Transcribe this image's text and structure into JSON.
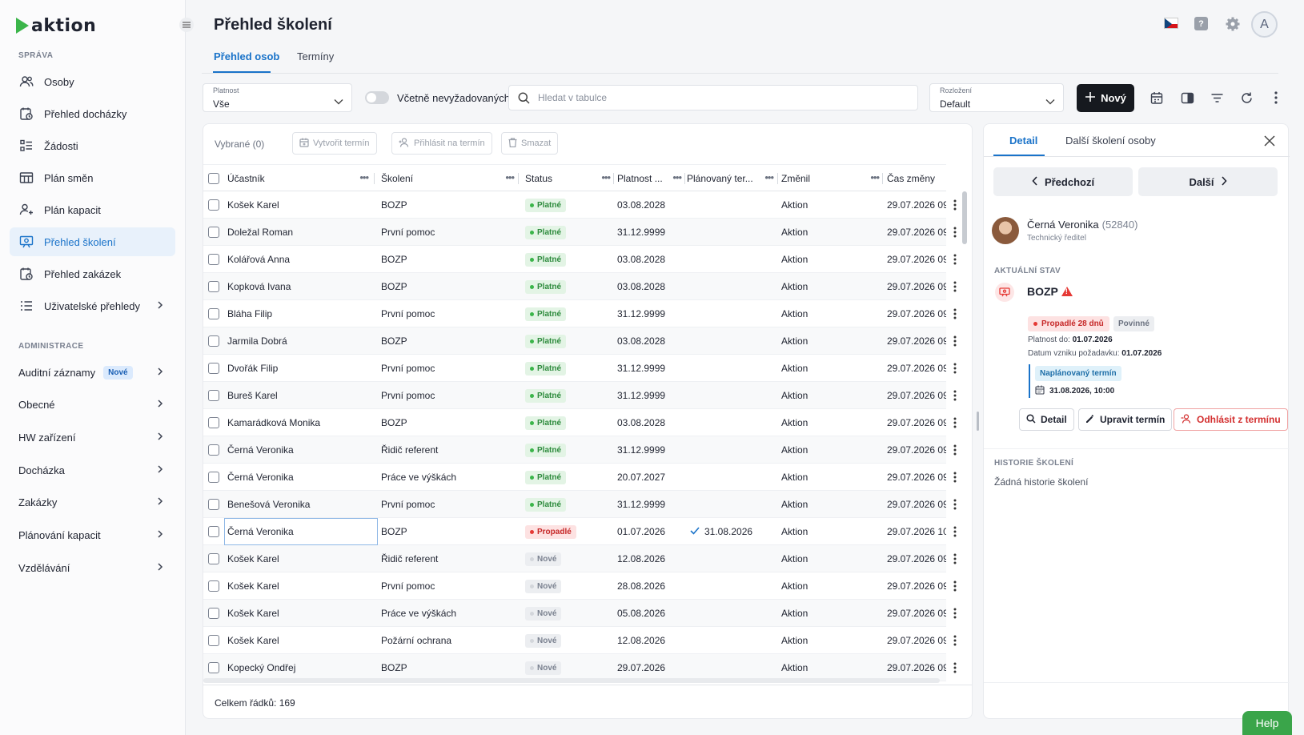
{
  "app": {
    "logo_text": "aktion"
  },
  "sidebar": {
    "section_sprava": "SPRÁVA",
    "items": [
      {
        "label": "Osoby",
        "icon": "people-icon"
      },
      {
        "label": "Přehled docházky",
        "icon": "attendance-icon"
      },
      {
        "label": "Žádosti",
        "icon": "requests-icon"
      },
      {
        "label": "Plán směn",
        "icon": "shift-plan-icon"
      },
      {
        "label": "Plán kapacit",
        "icon": "capacity-icon"
      },
      {
        "label": "Přehled školení",
        "icon": "training-icon",
        "active": true
      },
      {
        "label": "Přehled zakázek",
        "icon": "orders-icon"
      },
      {
        "label": "Uživatelské přehledy",
        "icon": "list-icon"
      }
    ],
    "section_admin": "ADMINISTRACE",
    "admin_items": [
      {
        "label": "Auditní záznamy",
        "badge": "Nové"
      },
      {
        "label": "Obecné"
      },
      {
        "label": "HW zařízení"
      },
      {
        "label": "Docházka"
      },
      {
        "label": "Zakázky"
      },
      {
        "label": "Plánování kapacit"
      },
      {
        "label": "Vzdělávání"
      }
    ]
  },
  "header": {
    "title": "Přehled školení",
    "tabs": [
      {
        "label": "Přehled osob"
      },
      {
        "label": "Termíny"
      }
    ],
    "avatar_letter": "A",
    "help_glyph": "?"
  },
  "toolbar": {
    "validity_label": "Platnost",
    "validity_value": "Vše",
    "toggle_label": "Včetně nevyžadovaných",
    "search_placeholder": "Hledat v tabulce",
    "layout_label": "Rozložení",
    "layout_value": "Default",
    "new_button": "Nový"
  },
  "grid": {
    "selected_label": "Vybrané (0)",
    "buttons": {
      "create": "Vytvořit termín",
      "signup": "Přihlásit na termín",
      "delete": "Smazat"
    },
    "columns": [
      "Účastník",
      "Školení",
      "Status",
      "Platnost ...",
      "Plánovaný ter...",
      "Změnil",
      "Čas změny"
    ],
    "rows": [
      {
        "participant": "Košek Karel",
        "course": "BOZP",
        "status": "Platné",
        "status_type": "ok",
        "validity": "03.08.2028",
        "planned": "",
        "changed_by": "Aktion",
        "changed_at": "29.07.2026 09"
      },
      {
        "participant": "Doležal Roman",
        "course": "První pomoc",
        "status": "Platné",
        "status_type": "ok",
        "validity": "31.12.9999",
        "planned": "",
        "changed_by": "Aktion",
        "changed_at": "29.07.2026 09"
      },
      {
        "participant": "Kolářová Anna",
        "course": "BOZP",
        "status": "Platné",
        "status_type": "ok",
        "validity": "03.08.2028",
        "planned": "",
        "changed_by": "Aktion",
        "changed_at": "29.07.2026 09"
      },
      {
        "participant": "Kopková Ivana",
        "course": "BOZP",
        "status": "Platné",
        "status_type": "ok",
        "validity": "03.08.2028",
        "planned": "",
        "changed_by": "Aktion",
        "changed_at": "29.07.2026 09"
      },
      {
        "participant": "Bláha Filip",
        "course": "První pomoc",
        "status": "Platné",
        "status_type": "ok",
        "validity": "31.12.9999",
        "planned": "",
        "changed_by": "Aktion",
        "changed_at": "29.07.2026 09"
      },
      {
        "participant": "Jarmila Dobrá",
        "course": "BOZP",
        "status": "Platné",
        "status_type": "ok",
        "validity": "03.08.2028",
        "planned": "",
        "changed_by": "Aktion",
        "changed_at": "29.07.2026 09"
      },
      {
        "participant": "Dvořák Filip",
        "course": "První pomoc",
        "status": "Platné",
        "status_type": "ok",
        "validity": "31.12.9999",
        "planned": "",
        "changed_by": "Aktion",
        "changed_at": "29.07.2026 09"
      },
      {
        "participant": "Bureš Karel",
        "course": "První pomoc",
        "status": "Platné",
        "status_type": "ok",
        "validity": "31.12.9999",
        "planned": "",
        "changed_by": "Aktion",
        "changed_at": "29.07.2026 09"
      },
      {
        "participant": "Kamarádková Monika",
        "course": "BOZP",
        "status": "Platné",
        "status_type": "ok",
        "validity": "03.08.2028",
        "planned": "",
        "changed_by": "Aktion",
        "changed_at": "29.07.2026 09"
      },
      {
        "participant": "Černá Veronika",
        "course": "Řidič referent",
        "status": "Platné",
        "status_type": "ok",
        "validity": "31.12.9999",
        "planned": "",
        "changed_by": "Aktion",
        "changed_at": "29.07.2026 09"
      },
      {
        "participant": "Černá Veronika",
        "course": "Práce ve výškách",
        "status": "Platné",
        "status_type": "ok",
        "validity": "20.07.2027",
        "planned": "",
        "changed_by": "Aktion",
        "changed_at": "29.07.2026 09"
      },
      {
        "participant": "Benešová Veronika",
        "course": "První pomoc",
        "status": "Platné",
        "status_type": "ok",
        "validity": "31.12.9999",
        "planned": "",
        "changed_by": "Aktion",
        "changed_at": "29.07.2026 09"
      },
      {
        "participant": "Černá Veronika",
        "course": "BOZP",
        "status": "Propadlé",
        "status_type": "bad",
        "validity": "01.07.2026",
        "planned": "31.08.2026",
        "changed_by": "Aktion",
        "changed_at": "29.07.2026 10",
        "focused": true
      },
      {
        "participant": "Košek Karel",
        "course": "Řidič referent",
        "status": "Nové",
        "status_type": "new",
        "validity": "12.08.2026",
        "planned": "",
        "changed_by": "Aktion",
        "changed_at": "29.07.2026 09"
      },
      {
        "participant": "Košek Karel",
        "course": "První pomoc",
        "status": "Nové",
        "status_type": "new",
        "validity": "28.08.2026",
        "planned": "",
        "changed_by": "Aktion",
        "changed_at": "29.07.2026 09"
      },
      {
        "participant": "Košek Karel",
        "course": "Práce ve výškách",
        "status": "Nové",
        "status_type": "new",
        "validity": "05.08.2026",
        "planned": "",
        "changed_by": "Aktion",
        "changed_at": "29.07.2026 09"
      },
      {
        "participant": "Košek Karel",
        "course": "Požární ochrana",
        "status": "Nové",
        "status_type": "new",
        "validity": "12.08.2026",
        "planned": "",
        "changed_by": "Aktion",
        "changed_at": "29.07.2026 09"
      },
      {
        "participant": "Kopecký Ondřej",
        "course": "BOZP",
        "status": "Nové",
        "status_type": "new",
        "validity": "29.07.2026",
        "planned": "",
        "changed_by": "Aktion",
        "changed_at": "29.07.2026 09"
      }
    ],
    "total": "Celkem řádků: 169"
  },
  "detail": {
    "tabs": [
      {
        "label": "Detail"
      },
      {
        "label": "Další školení osoby"
      }
    ],
    "prev": "Předchozí",
    "next": "Další",
    "person": {
      "name": "Černá Veronika",
      "id": "(52840)",
      "role": "Technický ředitel"
    },
    "current_state_label": "AKTUÁLNÍ STAV",
    "course": "BOZP",
    "expired_badge": "Propadlé 28 dnů",
    "required_badge": "Povinné",
    "valid_until_label": "Platnost do:",
    "valid_until": "01.07.2026",
    "requirement_label": "Datum vzniku požadavku:",
    "requirement_date": "01.07.2026",
    "planned_badge": "Naplánovaný termín",
    "planned_datetime": "31.08.2026, 10:00",
    "actions": {
      "detail": "Detail",
      "edit": "Upravit termín",
      "signoff": "Odhlásit z termínu"
    },
    "history_label": "HISTORIE ŠKOLENÍ",
    "no_history": "Žádná historie školení"
  },
  "help_button": "Help",
  "colors": {
    "accent": "#1a73c9",
    "brand_green": "#3bb54a",
    "danger": "#d32f2f"
  }
}
